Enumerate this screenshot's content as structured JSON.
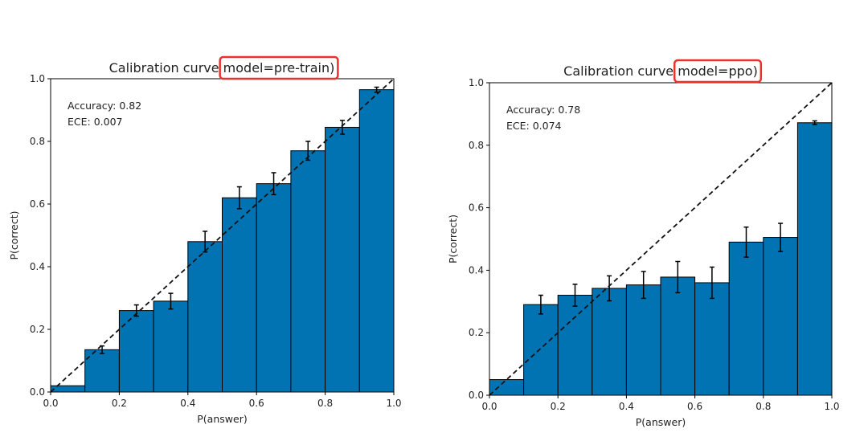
{
  "colors": {
    "bar": "#0173b2",
    "highlight": "#e8322b",
    "diagonal": "#111111"
  },
  "chart_data": [
    {
      "type": "bar",
      "title_prefix": "Calibration curve ",
      "title_highlight": "model=pre-train)",
      "xlabel": "P(answer)",
      "ylabel": "P(correct)",
      "xlim": [
        0,
        1
      ],
      "ylim": [
        0,
        1
      ],
      "xticks": [
        "0.0",
        "0.2",
        "0.4",
        "0.6",
        "0.8",
        "1.0"
      ],
      "yticks": [
        "0.0",
        "0.2",
        "0.4",
        "0.6",
        "0.8",
        "1.0"
      ],
      "annotations": [
        "Accuracy: 0.82",
        "ECE: 0.007"
      ],
      "bins": [
        [
          0.0,
          0.1
        ],
        [
          0.1,
          0.2
        ],
        [
          0.2,
          0.3
        ],
        [
          0.3,
          0.4
        ],
        [
          0.4,
          0.5
        ],
        [
          0.5,
          0.6
        ],
        [
          0.6,
          0.7
        ],
        [
          0.7,
          0.8
        ],
        [
          0.8,
          0.9
        ],
        [
          0.9,
          1.0
        ]
      ],
      "values": [
        0.02,
        0.135,
        0.26,
        0.29,
        0.48,
        0.62,
        0.665,
        0.77,
        0.845,
        0.965
      ],
      "errors": [
        0.0,
        0.012,
        0.018,
        0.025,
        0.033,
        0.035,
        0.035,
        0.03,
        0.022,
        0.008
      ],
      "diagonal": true
    },
    {
      "type": "bar",
      "title_prefix": "Calibration curve ",
      "title_highlight": "model=ppo)",
      "xlabel": "P(answer)",
      "ylabel": "P(correct)",
      "xlim": [
        0,
        1
      ],
      "ylim": [
        0,
        1
      ],
      "xticks": [
        "0.0",
        "0.2",
        "0.4",
        "0.6",
        "0.8",
        "1.0"
      ],
      "yticks": [
        "0.0",
        "0.2",
        "0.4",
        "0.6",
        "0.8",
        "1.0"
      ],
      "annotations": [
        "Accuracy: 0.78",
        "ECE: 0.074"
      ],
      "bins": [
        [
          0.0,
          0.1
        ],
        [
          0.1,
          0.2
        ],
        [
          0.2,
          0.3
        ],
        [
          0.3,
          0.4
        ],
        [
          0.4,
          0.5
        ],
        [
          0.5,
          0.6
        ],
        [
          0.6,
          0.7
        ],
        [
          0.7,
          0.8
        ],
        [
          0.8,
          0.9
        ],
        [
          0.9,
          1.0
        ]
      ],
      "values": [
        0.05,
        0.29,
        0.32,
        0.342,
        0.353,
        0.378,
        0.36,
        0.49,
        0.505,
        0.872
      ],
      "errors": [
        0.0,
        0.03,
        0.035,
        0.04,
        0.043,
        0.05,
        0.05,
        0.048,
        0.045,
        0.006
      ],
      "diagonal": true
    }
  ]
}
